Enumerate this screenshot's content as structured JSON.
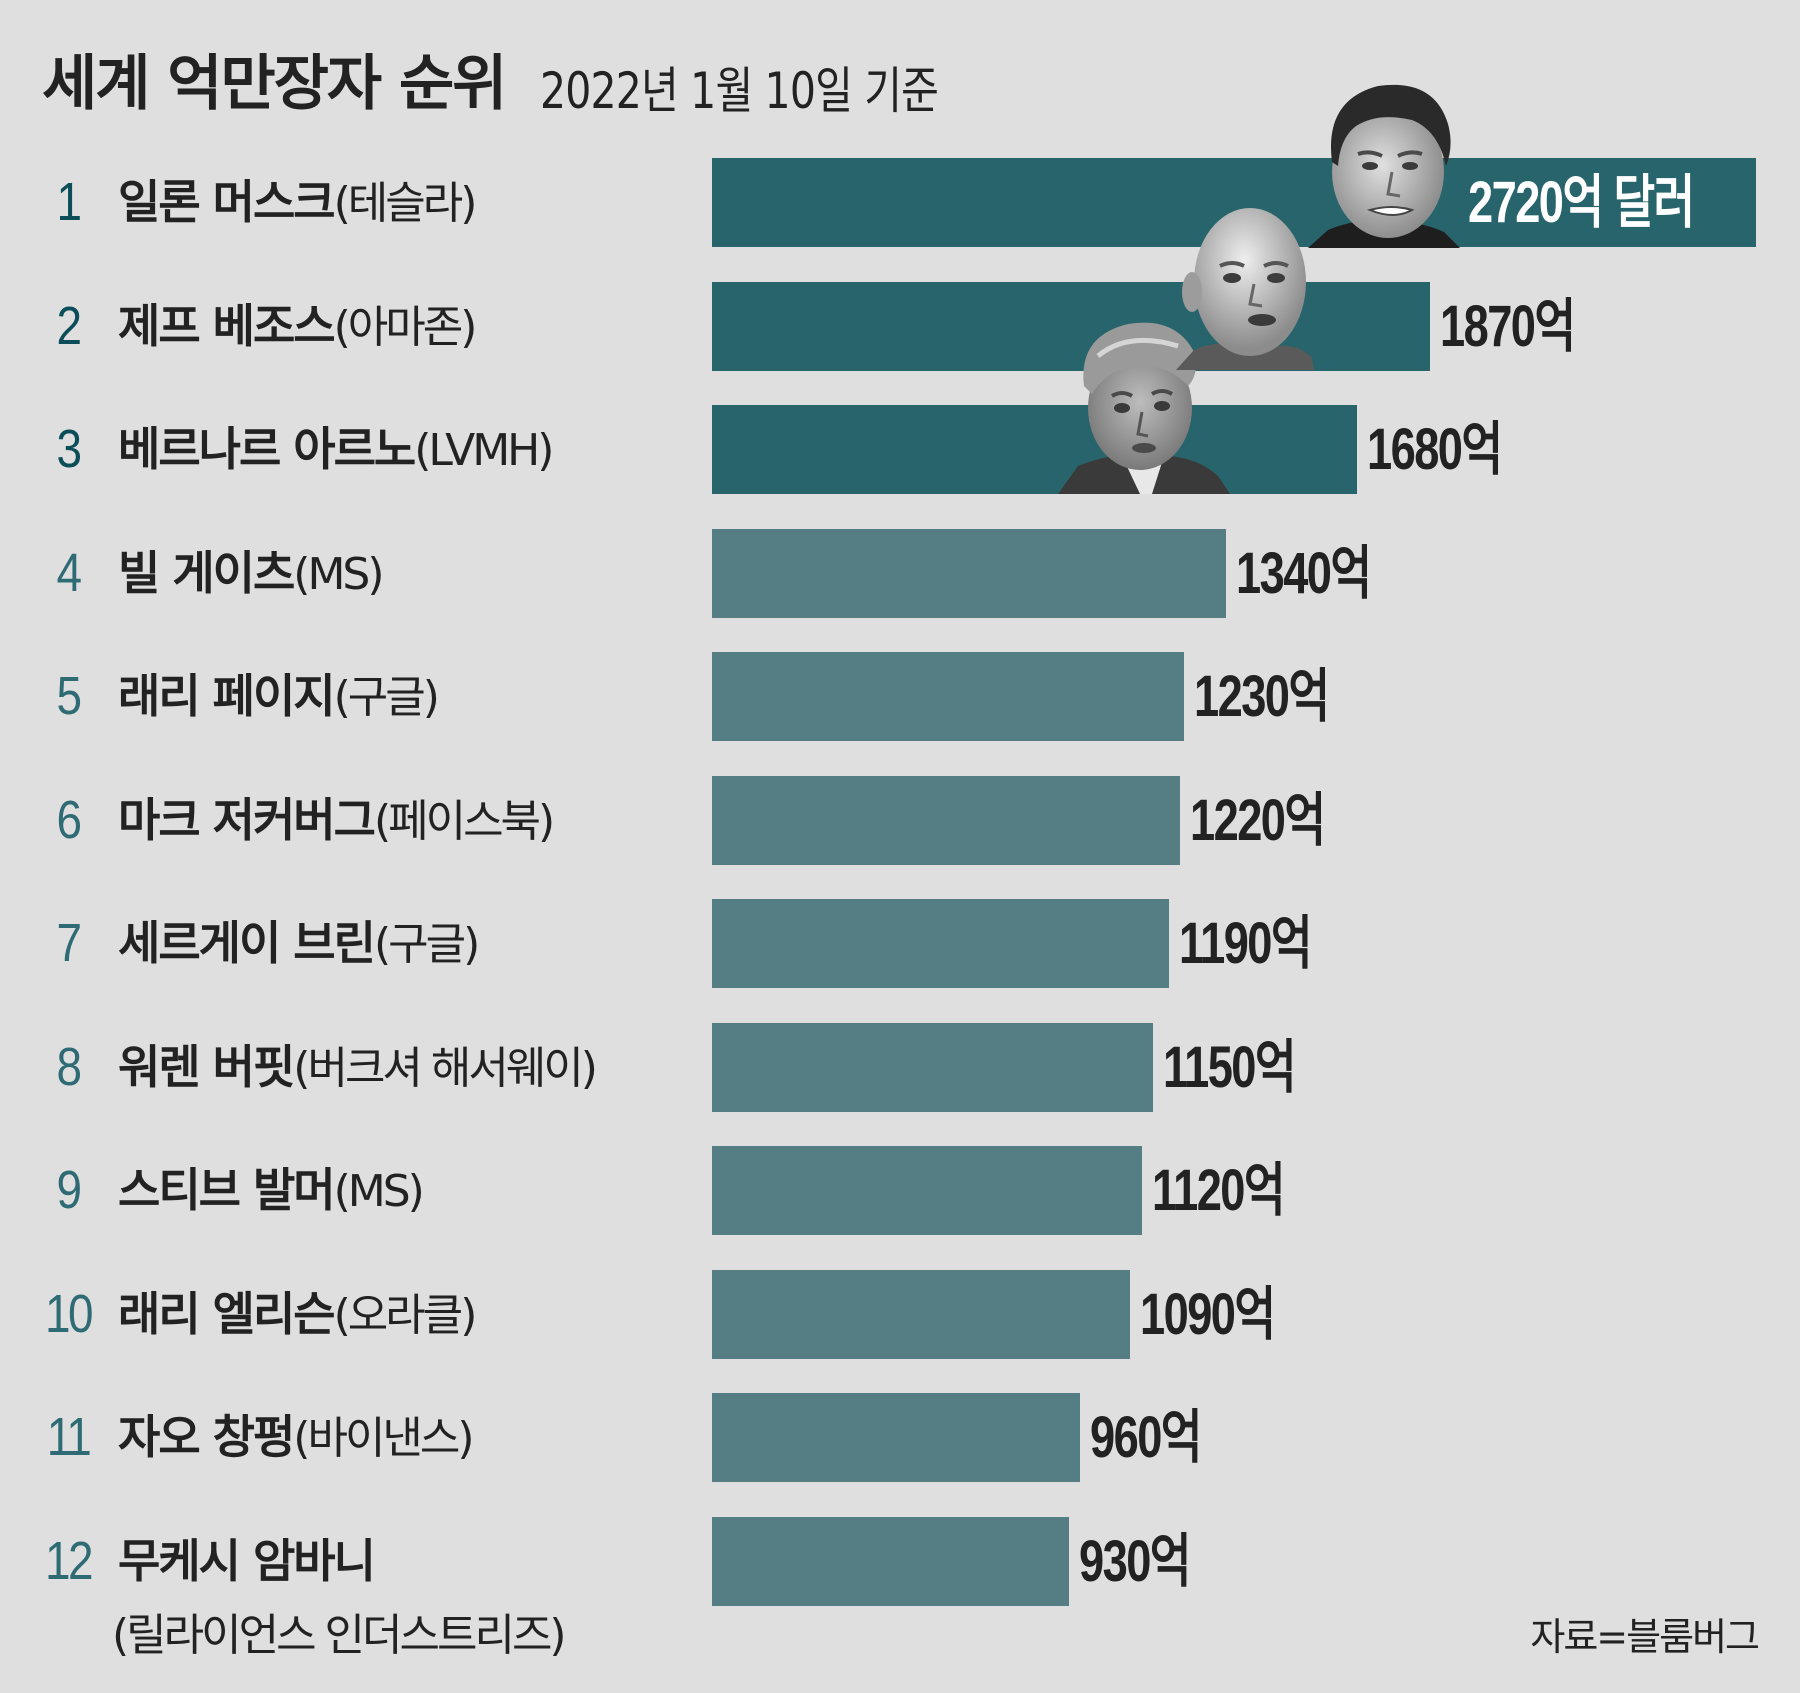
{
  "header": {
    "title": "세계 억만장자 순위",
    "subtitle": "2022년 1월 10일 기준"
  },
  "colors": {
    "background": "#dfdfdf",
    "bar_top3": "#28646b",
    "bar_rest": "#547e84",
    "rank_top3": "#0b4e59",
    "rank_rest": "#2f6b74",
    "text": "#222222"
  },
  "rows": [
    {
      "rank": "1",
      "name": "일론 머스크",
      "company": "(테슬라)",
      "value_label": "2720억 달러",
      "photo": "elon-musk-photo"
    },
    {
      "rank": "2",
      "name": "제프 베조스",
      "company": "(아마존)",
      "value_label": "1870억",
      "photo": "jeff-bezos-photo"
    },
    {
      "rank": "3",
      "name": "베르나르 아르노",
      "company": "(LVMH)",
      "value_label": "1680억",
      "photo": "bernard-arnault-photo"
    },
    {
      "rank": "4",
      "name": "빌 게이츠",
      "company": "(MS)",
      "value_label": "1340억"
    },
    {
      "rank": "5",
      "name": "래리 페이지",
      "company": "(구글)",
      "value_label": "1230억"
    },
    {
      "rank": "6",
      "name": "마크 저커버그",
      "company": "(페이스북)",
      "value_label": "1220억"
    },
    {
      "rank": "7",
      "name": "세르게이 브린",
      "company": "(구글)",
      "value_label": "1190억"
    },
    {
      "rank": "8",
      "name": "워렌 버핏",
      "company": "(버크셔 해서웨이)",
      "value_label": "1150억"
    },
    {
      "rank": "9",
      "name": "스티브 발머",
      "company": "(MS)",
      "value_label": "1120억"
    },
    {
      "rank": "10",
      "name": "래리 엘리슨",
      "company": "(오라클)",
      "value_label": "1090억"
    },
    {
      "rank": "11",
      "name": "자오 창펑",
      "company": "(바이낸스)",
      "value_label": "960억"
    },
    {
      "rank": "12",
      "name": "무케시 암바니",
      "company": "(릴라이언스 인더스트리즈)",
      "value_label": "930억"
    }
  ],
  "footer": {
    "source": "자료=블룸버그"
  },
  "chart_data": {
    "type": "bar",
    "orientation": "horizontal",
    "title": "세계 억만장자 순위",
    "subtitle": "2022년 1월 10일 기준",
    "categories": [
      "일론 머스크(테슬라)",
      "제프 베조스(아마존)",
      "베르나르 아르노(LVMH)",
      "빌 게이츠(MS)",
      "래리 페이지(구글)",
      "마크 저커버그(페이스북)",
      "세르게이 브린(구글)",
      "워렌 버핏(버크셔 해서웨이)",
      "스티브 발머(MS)",
      "래리 엘리슨(오라클)",
      "자오 창펑(바이낸스)",
      "무케시 암바니(릴라이언스 인더스트리즈)"
    ],
    "ranks": [
      1,
      2,
      3,
      4,
      5,
      6,
      7,
      8,
      9,
      10,
      11,
      12
    ],
    "values": [
      2720,
      1870,
      1680,
      1340,
      1230,
      1220,
      1190,
      1150,
      1120,
      1090,
      960,
      930
    ],
    "value_labels": [
      "2720억 달러",
      "1870억",
      "1680억",
      "1340억",
      "1230억",
      "1220억",
      "1190억",
      "1150억",
      "1120억",
      "1090억",
      "960억",
      "930억"
    ],
    "unit": "억 달러",
    "xlabel": "",
    "ylabel": "",
    "axes_visible": false,
    "grid": false,
    "legend": null,
    "highlight": "top 3 bars in darker teal with portrait photos",
    "source": "자료=블룸버그"
  }
}
